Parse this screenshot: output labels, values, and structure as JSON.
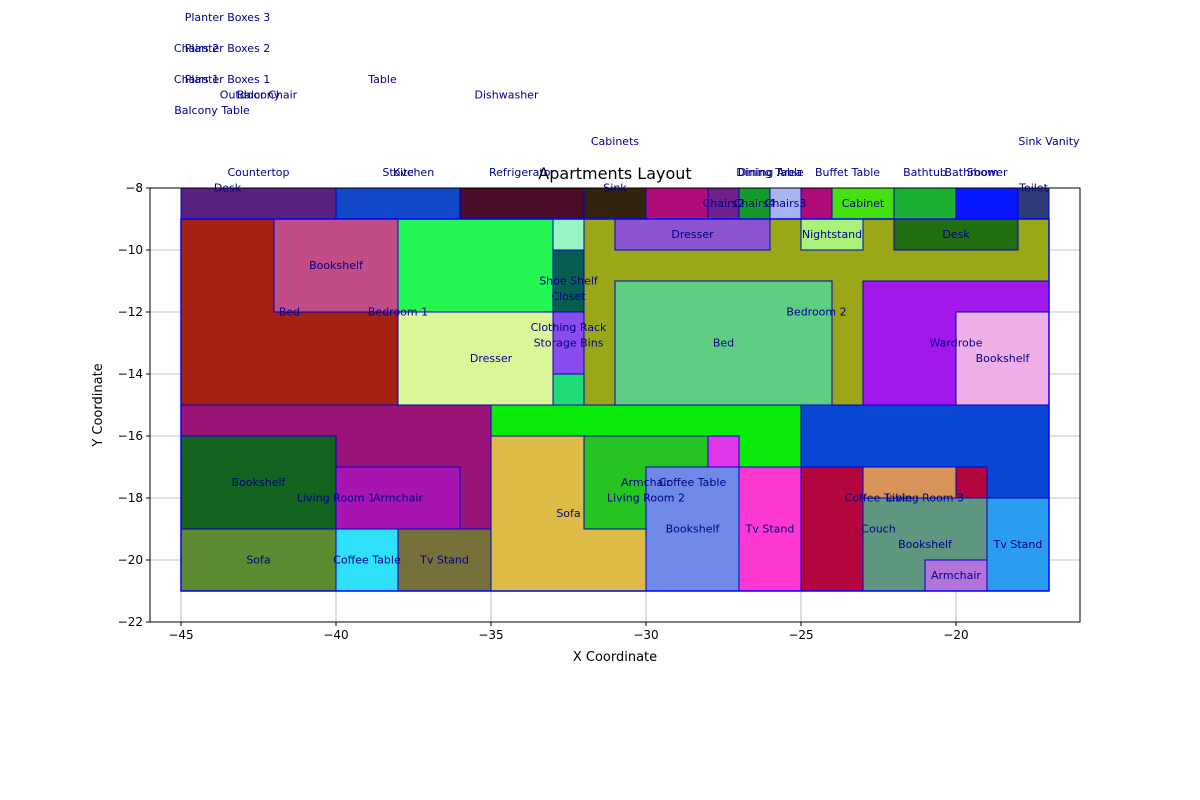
{
  "chart_data": {
    "type": "floor-plan",
    "title": "Apartments Layout",
    "xlabel": "X Coordinate",
    "ylabel": "Y Coordinate",
    "xlim": [
      -46,
      -16
    ],
    "ylim": [
      -22,
      -8
    ],
    "xticks": [
      -45,
      -40,
      -35,
      -30,
      -25,
      -20
    ],
    "yticks": [
      -22,
      -20,
      -18,
      -16,
      -14,
      -12,
      -10,
      -8
    ],
    "grid": true,
    "outline": {
      "x": -45,
      "y": -21,
      "w": 28,
      "h": 12,
      "color": "#0000ff"
    },
    "rects": [
      {
        "x": -45,
        "y": -9,
        "w": 5,
        "h": 1,
        "color": "#5a2080"
      },
      {
        "x": -40,
        "y": -9,
        "w": 4,
        "h": 1,
        "color": "#1048c8"
      },
      {
        "x": -36,
        "y": -9,
        "w": 4,
        "h": 1,
        "color": "#4a0c28"
      },
      {
        "x": -32,
        "y": -9,
        "w": 2,
        "h": 1,
        "color": "#33230e"
      },
      {
        "x": -30,
        "y": -9,
        "w": 2,
        "h": 1,
        "color": "#b00c78"
      },
      {
        "x": -28,
        "y": -9,
        "w": 1,
        "h": 1,
        "color": "#70208c"
      },
      {
        "x": -27,
        "y": -9,
        "w": 1,
        "h": 1,
        "color": "#149a2a"
      },
      {
        "x": -26,
        "y": -9,
        "w": 1,
        "h": 1,
        "color": "#a8b4f0"
      },
      {
        "x": -25,
        "y": -9,
        "w": 1,
        "h": 1,
        "color": "#b00c78"
      },
      {
        "x": -24,
        "y": -9,
        "w": 2,
        "h": 1,
        "color": "#44e010"
      },
      {
        "x": -22,
        "y": -9,
        "w": 2,
        "h": 1,
        "color": "#1cb032"
      },
      {
        "x": -20,
        "y": -9,
        "w": 2,
        "h": 1,
        "color": "#0a18ff"
      },
      {
        "x": -18,
        "y": -9,
        "w": 1,
        "h": 1,
        "color": "#2e3a7a"
      },
      {
        "x": -45,
        "y": -15,
        "w": 7,
        "h": 6,
        "color": "#a52212"
      },
      {
        "x": -42,
        "y": -12,
        "w": 4,
        "h": 3,
        "color": "#c04c88"
      },
      {
        "x": -38,
        "y": -12,
        "w": 5,
        "h": 3,
        "color": "#26f654"
      },
      {
        "x": -38,
        "y": -15,
        "w": 5,
        "h": 3,
        "color": "#dcf79a"
      },
      {
        "x": -33,
        "y": -10,
        "w": 1,
        "h": 1,
        "color": "#96f5c2"
      },
      {
        "x": -33,
        "y": -12,
        "w": 1,
        "h": 2,
        "color": "#065e50"
      },
      {
        "x": -33,
        "y": -14,
        "w": 1,
        "h": 2,
        "color": "#8a4cee"
      },
      {
        "x": -33,
        "y": -15,
        "w": 1,
        "h": 1,
        "color": "#20dc74"
      },
      {
        "x": -32,
        "y": -15,
        "w": 15,
        "h": 6,
        "color": "#9aa818"
      },
      {
        "x": -31,
        "y": -10,
        "w": 5,
        "h": 1,
        "color": "#8c54d0"
      },
      {
        "x": -31,
        "y": -15,
        "w": 7,
        "h": 4,
        "color": "#5ece82"
      },
      {
        "x": -25,
        "y": -10,
        "w": 2,
        "h": 1,
        "color": "#a8f27a"
      },
      {
        "x": -22,
        "y": -10,
        "w": 4,
        "h": 1,
        "color": "#226e12"
      },
      {
        "x": -23,
        "y": -15,
        "w": 6,
        "h": 4,
        "color": "#a218ea"
      },
      {
        "x": -20,
        "y": -15,
        "w": 3,
        "h": 3,
        "color": "#eeb0e6"
      },
      {
        "x": -45,
        "y": -21,
        "w": 10,
        "h": 6,
        "color": "#9a1478"
      },
      {
        "x": -45,
        "y": -19,
        "w": 5,
        "h": 3,
        "color": "#146420"
      },
      {
        "x": -40,
        "y": -19,
        "w": 4,
        "h": 2,
        "color": "#a814b2"
      },
      {
        "x": -45,
        "y": -21,
        "w": 5,
        "h": 2,
        "color": "#5e8a32"
      },
      {
        "x": -40,
        "y": -21,
        "w": 2,
        "h": 2,
        "color": "#2ee0fc"
      },
      {
        "x": -38,
        "y": -21,
        "w": 3,
        "h": 2,
        "color": "#76703a"
      },
      {
        "x": -35,
        "y": -21,
        "w": 10,
        "h": 6,
        "color": "#08ea08"
      },
      {
        "x": -35,
        "y": -21,
        "w": 5,
        "h": 5,
        "color": "#dcbc44"
      },
      {
        "x": -32,
        "y": -19,
        "w": 4,
        "h": 3,
        "color": "#26c420"
      },
      {
        "x": -28,
        "y": -17,
        "w": 1,
        "h": 1,
        "color": "#e038e8"
      },
      {
        "x": -30,
        "y": -21,
        "w": 3,
        "h": 4,
        "color": "#6e8ae6"
      },
      {
        "x": -27,
        "y": -21,
        "w": 2,
        "h": 4,
        "color": "#fc38d0"
      },
      {
        "x": -25,
        "y": -21,
        "w": 8,
        "h": 6,
        "color": "#0a46d4"
      },
      {
        "x": -25,
        "y": -21,
        "w": 2,
        "h": 4,
        "color": "#b4063e"
      },
      {
        "x": -23,
        "y": -19,
        "w": 3,
        "h": 2,
        "color": "#d89458"
      },
      {
        "x": -20,
        "y": -18,
        "w": 1,
        "h": 1,
        "color": "#b4063e"
      },
      {
        "x": -23,
        "y": -21,
        "w": 4,
        "h": 3,
        "color": "#5e9680"
      },
      {
        "x": -21,
        "y": -21,
        "w": 2,
        "h": 1,
        "color": "#b274d8"
      },
      {
        "x": -19,
        "y": -21,
        "w": 2,
        "h": 3,
        "color": "#2c9cee"
      }
    ],
    "labels": [
      {
        "text": "Planter Boxes 3",
        "x": -43.5,
        "y": -2.5
      },
      {
        "text": "Chairs 2",
        "x": -44.5,
        "y": -3.5
      },
      {
        "text": "Planter Boxes 2",
        "x": -43.5,
        "y": -3.5
      },
      {
        "text": "Chairs 1",
        "x": -44.5,
        "y": -4.5
      },
      {
        "text": "Planter Boxes 1",
        "x": -43.5,
        "y": -4.5
      },
      {
        "text": "Table",
        "x": -38.5,
        "y": -4.5
      },
      {
        "text": "Outdoor Chair",
        "x": -42.5,
        "y": -5.0
      },
      {
        "text": "Balcony",
        "x": -42.5,
        "y": -5.0
      },
      {
        "text": "Dishwasher",
        "x": -34.5,
        "y": -5.0
      },
      {
        "text": "Balcony Table",
        "x": -44.0,
        "y": -5.5
      },
      {
        "text": "Cabinets",
        "x": -31.0,
        "y": -6.5
      },
      {
        "text": "Sink Vanity",
        "x": -17.0,
        "y": -6.5
      },
      {
        "text": "Countertop",
        "x": -42.5,
        "y": -7.5
      },
      {
        "text": "Stove",
        "x": -38.0,
        "y": -7.5
      },
      {
        "text": "Kitchen",
        "x": -37.5,
        "y": -7.5
      },
      {
        "text": "Refrigerator",
        "x": -34.0,
        "y": -7.5
      },
      {
        "text": "Dining Area",
        "x": -26.0,
        "y": -7.5
      },
      {
        "text": "Dining Table",
        "x": -26.0,
        "y": -7.5
      },
      {
        "text": "Buffet Table",
        "x": -23.5,
        "y": -7.5
      },
      {
        "text": "Bathtub",
        "x": -21.0,
        "y": -7.5
      },
      {
        "text": "Bathroom",
        "x": -19.5,
        "y": -7.5
      },
      {
        "text": "Shower",
        "x": -19.0,
        "y": -7.5
      },
      {
        "text": "Desk",
        "x": -43.5,
        "y": -8.0
      },
      {
        "text": "Sink",
        "x": -31.0,
        "y": -8.0
      },
      {
        "text": "Toilet",
        "x": -17.5,
        "y": -8.0
      },
      {
        "text": "Chairs2",
        "x": -27.5,
        "y": -8.5
      },
      {
        "text": "Chairs4",
        "x": -26.5,
        "y": -8.5
      },
      {
        "text": "Chairs3",
        "x": -25.5,
        "y": -8.5
      },
      {
        "text": "Cabinet",
        "x": -23.0,
        "y": -8.5
      },
      {
        "text": "Dresser",
        "x": -28.5,
        "y": -9.5
      },
      {
        "text": "Nightstand",
        "x": -24.0,
        "y": -9.5
      },
      {
        "text": "Desk",
        "x": -20.0,
        "y": -9.5
      },
      {
        "text": "Bookshelf",
        "x": -40.0,
        "y": -10.5
      },
      {
        "text": "Shoe Shelf",
        "x": -32.5,
        "y": -11.0
      },
      {
        "text": "Closet",
        "x": -32.5,
        "y": -11.5
      },
      {
        "text": "Bed",
        "x": -41.5,
        "y": -12.0
      },
      {
        "text": "Bedroom 1",
        "x": -38.0,
        "y": -12.0
      },
      {
        "text": "Bedroom 2",
        "x": -24.5,
        "y": -12.0
      },
      {
        "text": "Clothing Rack",
        "x": -32.5,
        "y": -12.5
      },
      {
        "text": "Storage Bins",
        "x": -32.5,
        "y": -13.0
      },
      {
        "text": "Bed",
        "x": -27.5,
        "y": -13.0
      },
      {
        "text": "Wardrobe",
        "x": -20.0,
        "y": -13.0
      },
      {
        "text": "Dresser",
        "x": -35.0,
        "y": -13.5
      },
      {
        "text": "Bookshelf",
        "x": -18.5,
        "y": -13.5
      },
      {
        "text": "Bookshelf",
        "x": -42.5,
        "y": -17.5
      },
      {
        "text": "Armchair",
        "x": -30.0,
        "y": -17.5
      },
      {
        "text": "Coffee Table",
        "x": -28.5,
        "y": -17.5
      },
      {
        "text": "Living Room 1",
        "x": -40.0,
        "y": -18.0
      },
      {
        "text": "Armchair",
        "x": -38.0,
        "y": -18.0
      },
      {
        "text": "Living Room 2",
        "x": -30.0,
        "y": -18.0
      },
      {
        "text": "Coffee Table",
        "x": -22.5,
        "y": -18.0
      },
      {
        "text": "Living Room 3",
        "x": -21.0,
        "y": -18.0
      },
      {
        "text": "Sofa",
        "x": -32.5,
        "y": -18.5
      },
      {
        "text": "Bookshelf",
        "x": -28.5,
        "y": -19.0
      },
      {
        "text": "Tv Stand",
        "x": -26.0,
        "y": -19.0
      },
      {
        "text": "Couch",
        "x": -22.5,
        "y": -19.0
      },
      {
        "text": "Bookshelf",
        "x": -21.0,
        "y": -19.5
      },
      {
        "text": "Tv Stand",
        "x": -18.0,
        "y": -19.5
      },
      {
        "text": "Sofa",
        "x": -42.5,
        "y": -20.0
      },
      {
        "text": "Coffee Table",
        "x": -39.0,
        "y": -20.0
      },
      {
        "text": "Tv Stand",
        "x": -36.5,
        "y": -20.0
      },
      {
        "text": "Armchair",
        "x": -20.0,
        "y": -20.5
      }
    ]
  }
}
